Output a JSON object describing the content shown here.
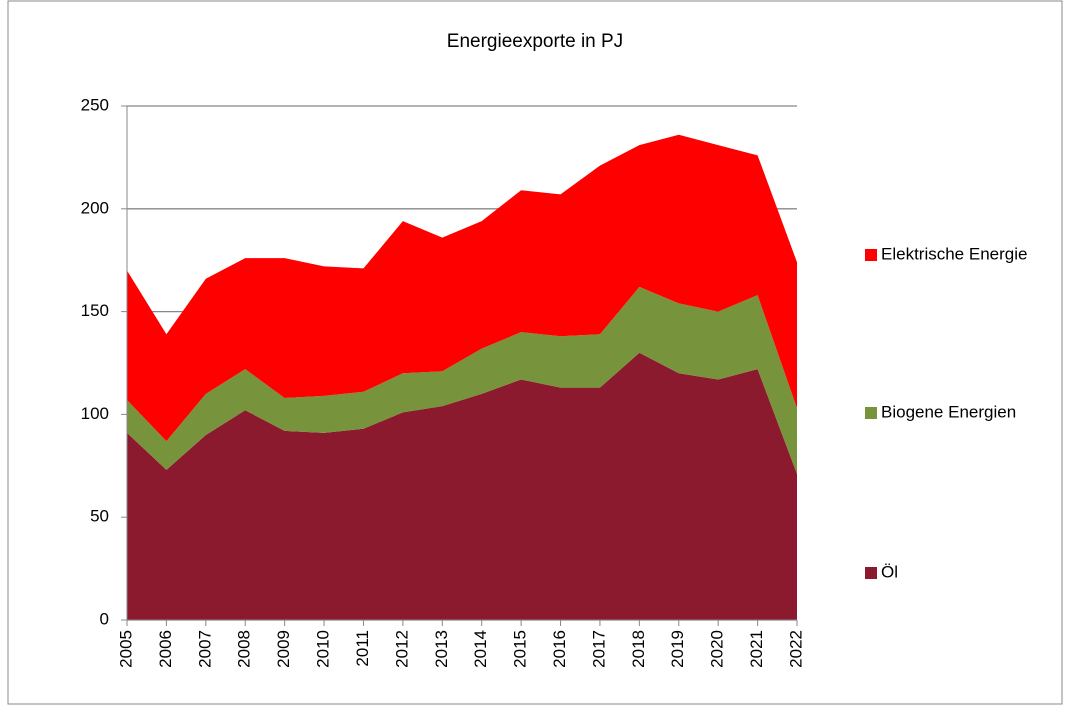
{
  "chart_data": {
    "type": "stacked_area",
    "title": "Energieexporte in PJ",
    "categories": [
      "2005",
      "2006",
      "2007",
      "2008",
      "2009",
      "2010",
      "2011",
      "2012",
      "2013",
      "2014",
      "2015",
      "2016",
      "2017",
      "2018",
      "2019",
      "2020",
      "2021",
      "2022"
    ],
    "series": [
      {
        "name": "Öl",
        "color": "#8b1a2e",
        "values": [
          91,
          73,
          90,
          102,
          92,
          91,
          93,
          101,
          104,
          110,
          117,
          113,
          113,
          130,
          120,
          117,
          122,
          71
        ]
      },
      {
        "name": "Biogene Energien",
        "color": "#77933c",
        "values": [
          16,
          14,
          20,
          20,
          16,
          18,
          18,
          19,
          17,
          22,
          23,
          25,
          26,
          32,
          34,
          33,
          36,
          32
        ]
      },
      {
        "name": "Elektrische Energie",
        "color": "#ff0000",
        "values": [
          63,
          52,
          56,
          54,
          68,
          63,
          60,
          74,
          65,
          62,
          69,
          69,
          82,
          69,
          82,
          81,
          68,
          71
        ]
      }
    ],
    "ylim": [
      0,
      250
    ],
    "yticks": [
      0,
      50,
      100,
      150,
      200,
      250
    ],
    "grid": true,
    "legend": "right"
  }
}
